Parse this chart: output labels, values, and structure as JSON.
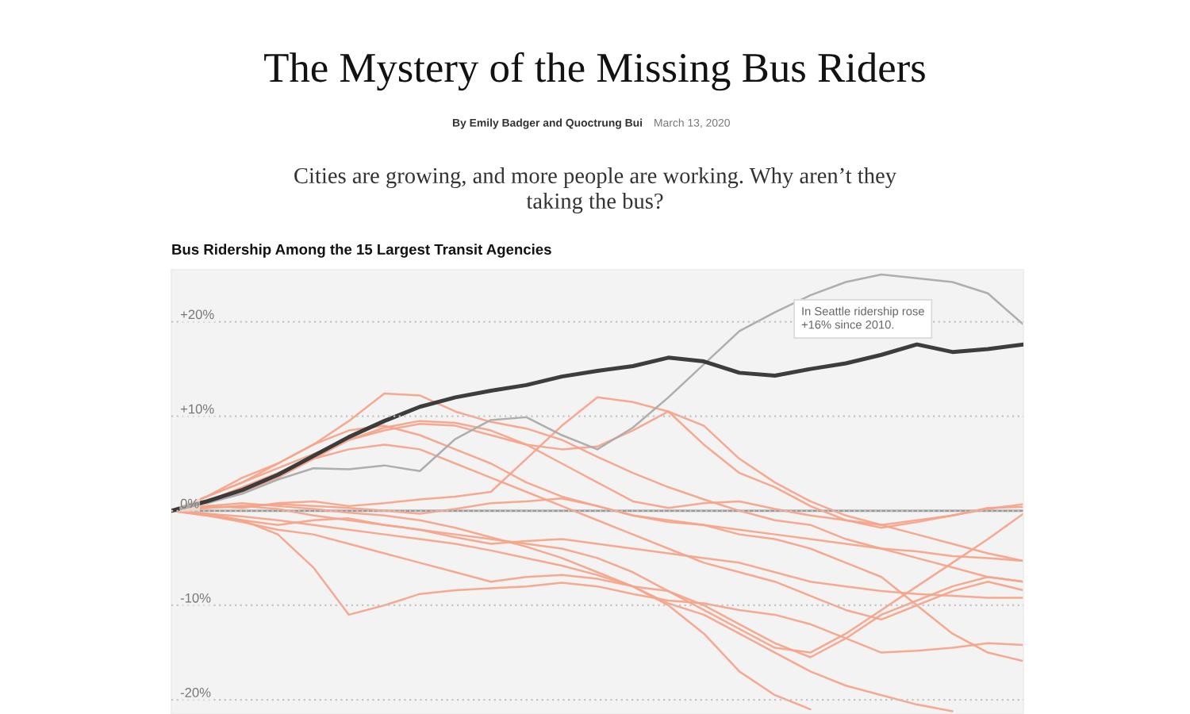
{
  "chart_data": {
    "type": "line",
    "title": "The Mystery of the Missing Bus Riders",
    "subtitle": "Cities are growing, and more people are working. Why aren’t they taking the bus?",
    "annotations": [
      "By Emily Badger and Quoctrung Bui",
      "March 13, 2020",
      "Bus Ridership Among the 15 Largest Transit Agencies",
      "In Seattle ridership rose +16% since 2010."
    ],
    "categories": [
      null,
      null,
      null,
      null,
      null,
      null,
      null,
      null,
      null,
      null,
      null,
      null,
      null,
      null,
      null,
      null,
      null,
      null,
      null,
      null,
      null,
      null,
      null,
      null,
      null
    ],
    "series": [
      {
        "color": "#f5a48a",
        "values": [
          0,
          1.5,
          3.5,
          5,
          7,
          9.5,
          12.4,
          12.2,
          10.5,
          9.4,
          8.7,
          7.5,
          5.7,
          4,
          2.5,
          1.2,
          0,
          -1,
          -1.5,
          -3,
          -4,
          -5,
          -6,
          -7,
          -7.5
        ]
      },
      {
        "color": "#f5a48a",
        "values": [
          0,
          0.5,
          0.3,
          0.8,
          1,
          0.5,
          0.8,
          1.2,
          1.5,
          2,
          5.5,
          9,
          12,
          11.5,
          10.5,
          7,
          4,
          2.5,
          0.5,
          -1,
          -1.8,
          -1.2,
          -0.5,
          0.2,
          0.7
        ]
      },
      {
        "color": "#f5a48a",
        "values": [
          0,
          1.5,
          3,
          4.5,
          6,
          7.5,
          8.5,
          9.2,
          9,
          8,
          7,
          6.5,
          6.8,
          8.5,
          10.5,
          9,
          5.5,
          3,
          1,
          -0.5,
          -1.5,
          -2.5,
          -3.5,
          -4.5,
          -5.3
        ]
      },
      {
        "color": "#f5a48a",
        "values": [
          0,
          -0.3,
          -1,
          -2.5,
          -6,
          -11,
          -10,
          -8.8,
          -8.4,
          -8.2,
          -8,
          -7.6,
          -8,
          -8.8,
          -9.5,
          -9.8,
          -10.5,
          -11,
          -12,
          -13.5,
          -15,
          -14.8,
          -14.5,
          -14,
          -14.2
        ]
      },
      {
        "color": "#f5a48a",
        "values": [
          0,
          -0.5,
          -1.2,
          -2,
          -2.5,
          -3.5,
          -4.5,
          -5.5,
          -6.5,
          -7.5,
          -7,
          -6.8,
          -7.2,
          -8,
          -8.5,
          -10,
          -12,
          -14,
          -15.5,
          -13.5,
          -11,
          -9.5,
          -8,
          -7,
          -7.5
        ]
      },
      {
        "color": "#f5a48a",
        "values": [
          0,
          0.3,
          0.5,
          0.2,
          -0.5,
          -1,
          -1.5,
          -2,
          -2.5,
          -3,
          -3.5,
          -4,
          -5,
          -6.5,
          -8.5,
          -10.5,
          -12.5,
          -14.5,
          -15,
          -13,
          -10.5,
          -8,
          -5.5,
          -3,
          -0.3
        ]
      },
      {
        "color": "#f5a48a",
        "values": [
          0,
          0.5,
          0.8,
          0.5,
          0.2,
          -0.2,
          -0.5,
          -1,
          -1.8,
          -2.8,
          -3.8,
          -5,
          -6.5,
          -8,
          -10,
          -13,
          -17,
          -19.5,
          -21,
          null,
          null,
          null,
          null,
          null,
          null
        ]
      },
      {
        "color": "#f5a48a",
        "values": [
          0,
          -0.3,
          -0.6,
          -1,
          -1.5,
          -2,
          -2.5,
          -3,
          -3.5,
          -4.2,
          -5,
          -5.8,
          -6.8,
          -8,
          -9.8,
          -11,
          -13,
          -15,
          -17,
          -18.5,
          -19.5,
          -20.5,
          -21.2,
          null,
          null
        ]
      },
      {
        "color": "#f5a48a",
        "values": [
          0,
          1,
          2.5,
          4,
          5.5,
          6.5,
          7,
          6.5,
          5,
          3.5,
          2,
          0.5,
          -1,
          -2.5,
          -4,
          -5.5,
          -6.5,
          -7.5,
          -9,
          -10.5,
          -11.5,
          -10,
          -8.5,
          -7.5,
          -8.4
        ]
      },
      {
        "color": "#f5a48a",
        "values": [
          0,
          0.8,
          2,
          3.5,
          5.5,
          7.5,
          8.8,
          9.5,
          9.3,
          8.5,
          7,
          5,
          3,
          1,
          0.3,
          0.8,
          1,
          0.2,
          -0.5,
          -1,
          -1.5,
          -1,
          -0.5,
          0.3,
          0.4
        ]
      },
      {
        "color": "#f5a48a",
        "values": [
          0,
          0.3,
          0.5,
          0.7,
          0.5,
          0.3,
          0,
          -0.3,
          0.2,
          0.8,
          1,
          1.3,
          0.5,
          -0.5,
          -1.2,
          -1.5,
          -2,
          -2.5,
          -3,
          -3.5,
          -4,
          -4.3,
          -4.8,
          -5,
          -5.3
        ]
      },
      {
        "color": "#f5a48a",
        "values": [
          0,
          -0.5,
          -1,
          -1.5,
          -1,
          -0.8,
          -1.5,
          -2,
          -2.8,
          -3.5,
          -3.2,
          -3,
          -3.5,
          -4,
          -4.5,
          -5,
          -5.5,
          -6.5,
          -7.5,
          -8,
          -8.5,
          -8.8,
          -9,
          -9.2,
          -9.2
        ]
      },
      {
        "color": "#f5a48a",
        "values": [
          0,
          1.5,
          3,
          5,
          7,
          8.5,
          9,
          8,
          6.5,
          5,
          3,
          1.5,
          0.5,
          -0.5,
          -1,
          -1.5,
          -2.5,
          -3,
          -4,
          -5.5,
          -7,
          -10,
          -13,
          -15,
          -15.9
        ]
      },
      {
        "color": "#aaaaaa",
        "values": [
          0,
          0.8,
          1.8,
          3.3,
          4.5,
          4.4,
          4.8,
          4.2,
          7.6,
          9.6,
          9.9,
          8,
          6.5,
          8.8,
          12,
          15.5,
          19,
          21,
          22.8,
          24.2,
          25,
          24.6,
          24.2,
          23,
          19.7
        ]
      },
      {
        "color": "#333333",
        "values": [
          0,
          1,
          2.2,
          3.8,
          5.8,
          7.8,
          9.5,
          11,
          12,
          12.7,
          13.3,
          14.2,
          14.8,
          15.3,
          16.2,
          15.8,
          14.6,
          14.3,
          15,
          15.6,
          16.5,
          17.6,
          16.8,
          17.1,
          17.6
        ]
      }
    ],
    "ylim": [
      -21.5,
      25.5
    ],
    "yticks": [
      {
        "value": -20,
        "label": "-20%"
      },
      {
        "value": -10,
        "label": "-10%"
      },
      {
        "value": 0,
        "label": "0%"
      },
      {
        "value": 10,
        "label": "+10%"
      },
      {
        "value": 20,
        "label": "+20%"
      }
    ],
    "ref_lines": [
      {
        "axis": "y",
        "value": 0,
        "color": "#999999",
        "line_style": "solid"
      }
    ],
    "grid": "y",
    "tick_labels": "y"
  }
}
